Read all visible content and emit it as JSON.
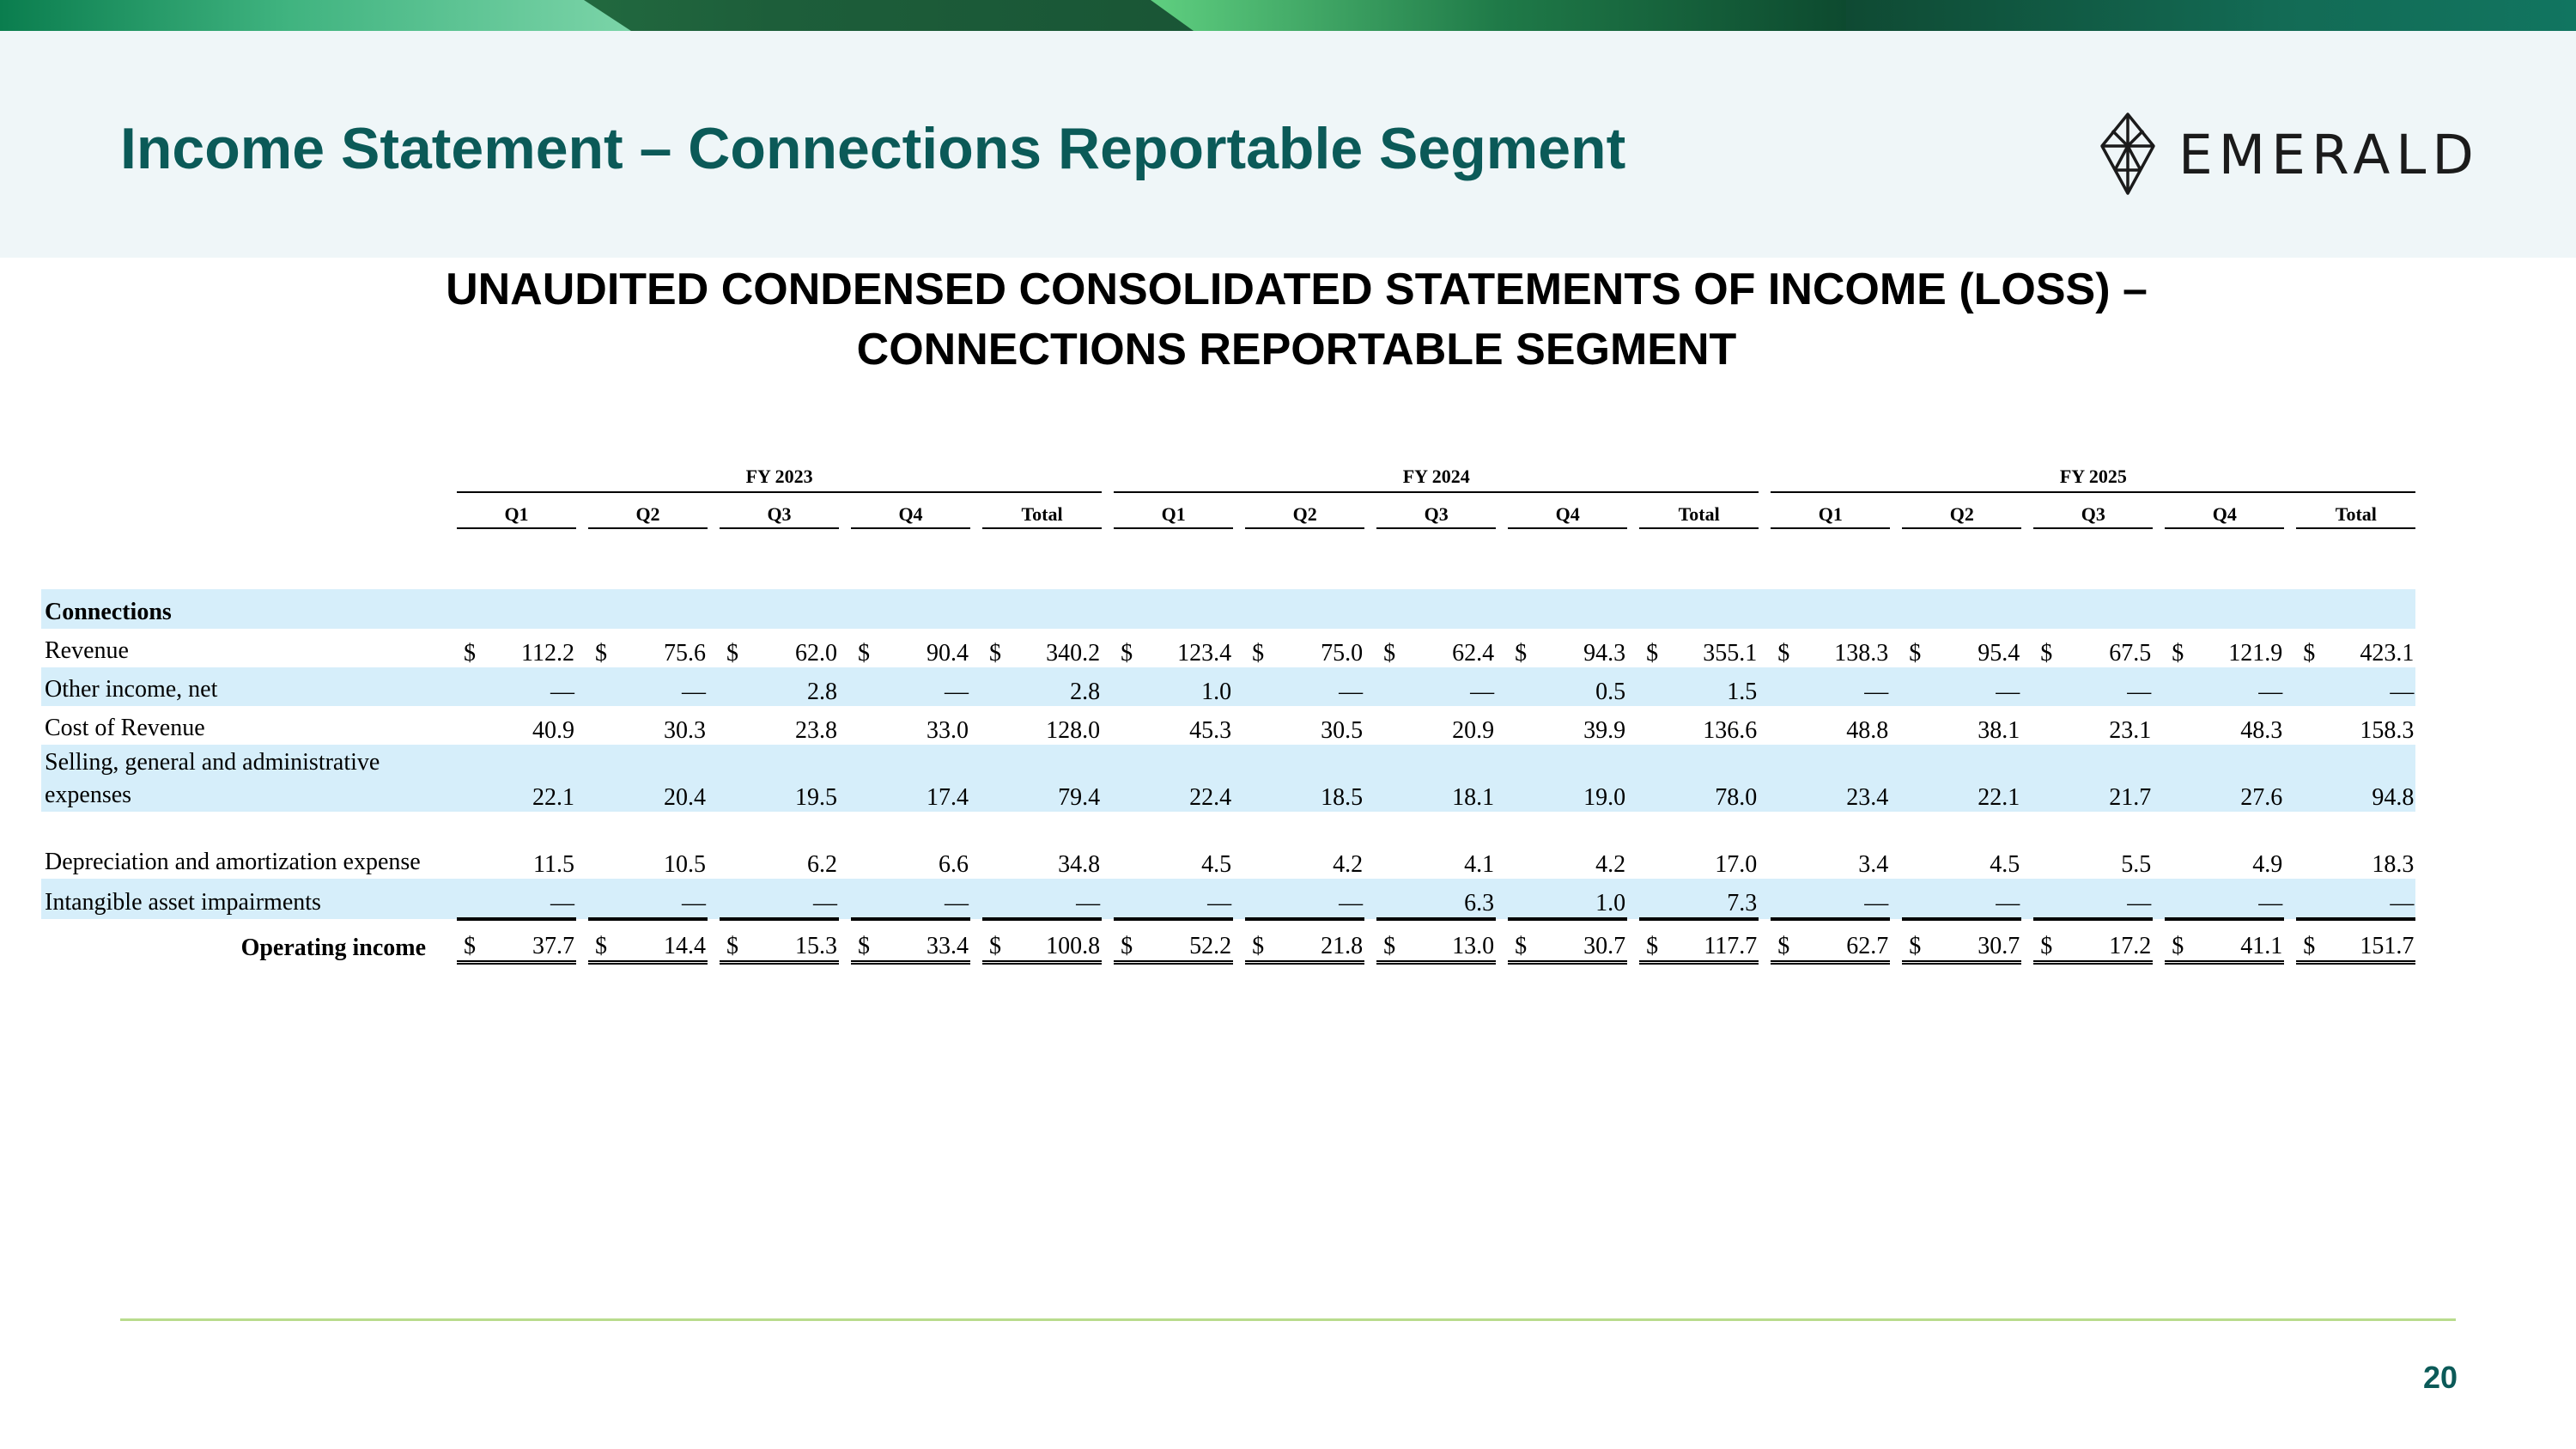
{
  "slide": {
    "title": "Income Statement – Connections Reportable Segment",
    "subtitle_line1": "UNAUDITED CONDENSED CONSOLIDATED STATEMENTS OF INCOME (LOSS) –",
    "subtitle_line2": "CONNECTIONS REPORTABLE SEGMENT",
    "logo_text": "EMERALD",
    "page_number": "20"
  },
  "colors": {
    "title": "#0b5a58",
    "row_shade": "#d6eefa",
    "header_bg": "#eff6f8",
    "footer_rule": "#b9dc8d"
  },
  "table": {
    "fiscal_years": [
      "FY 2023",
      "FY 2024",
      "FY 2025"
    ],
    "period_labels": [
      "Q1",
      "Q2",
      "Q3",
      "Q4",
      "Total"
    ],
    "section": "Connections",
    "currency_symbol": "$",
    "rows": [
      {
        "label": "Revenue",
        "values": [
          "112.2",
          "75.6",
          "62.0",
          "90.4",
          "340.2",
          "123.4",
          "75.0",
          "62.4",
          "94.3",
          "355.1",
          "138.3",
          "95.4",
          "67.5",
          "121.9",
          "423.1"
        ]
      },
      {
        "label": "Other income, net",
        "values": [
          "—",
          "—",
          "2.8",
          "—",
          "2.8",
          "1.0",
          "—",
          "—",
          "0.5",
          "1.5",
          "—",
          "—",
          "—",
          "—",
          "—"
        ]
      },
      {
        "label": "Cost of Revenue",
        "values": [
          "40.9",
          "30.3",
          "23.8",
          "33.0",
          "128.0",
          "45.3",
          "30.5",
          "20.9",
          "39.9",
          "136.6",
          "48.8",
          "38.1",
          "23.1",
          "48.3",
          "158.3"
        ]
      },
      {
        "label": "Selling, general and administrative expenses",
        "values": [
          "22.1",
          "20.4",
          "19.5",
          "17.4",
          "79.4",
          "22.4",
          "18.5",
          "18.1",
          "19.0",
          "78.0",
          "23.4",
          "22.1",
          "21.7",
          "27.6",
          "94.8"
        ]
      },
      {
        "label": "Depreciation and amortization expense",
        "values": [
          "11.5",
          "10.5",
          "6.2",
          "6.6",
          "34.8",
          "4.5",
          "4.2",
          "4.1",
          "4.2",
          "17.0",
          "3.4",
          "4.5",
          "5.5",
          "4.9",
          "18.3"
        ]
      },
      {
        "label": "Intangible asset impairments",
        "values": [
          "—",
          "—",
          "—",
          "—",
          "—",
          "—",
          "—",
          "6.3",
          "1.0",
          "7.3",
          "—",
          "—",
          "—",
          "—",
          "—"
        ]
      },
      {
        "label": "Operating income",
        "values": [
          "37.7",
          "14.4",
          "15.3",
          "33.4",
          "100.8",
          "52.2",
          "21.8",
          "13.0",
          "30.7",
          "117.7",
          "62.7",
          "30.7",
          "17.2",
          "41.1",
          "151.7"
        ]
      }
    ]
  }
}
